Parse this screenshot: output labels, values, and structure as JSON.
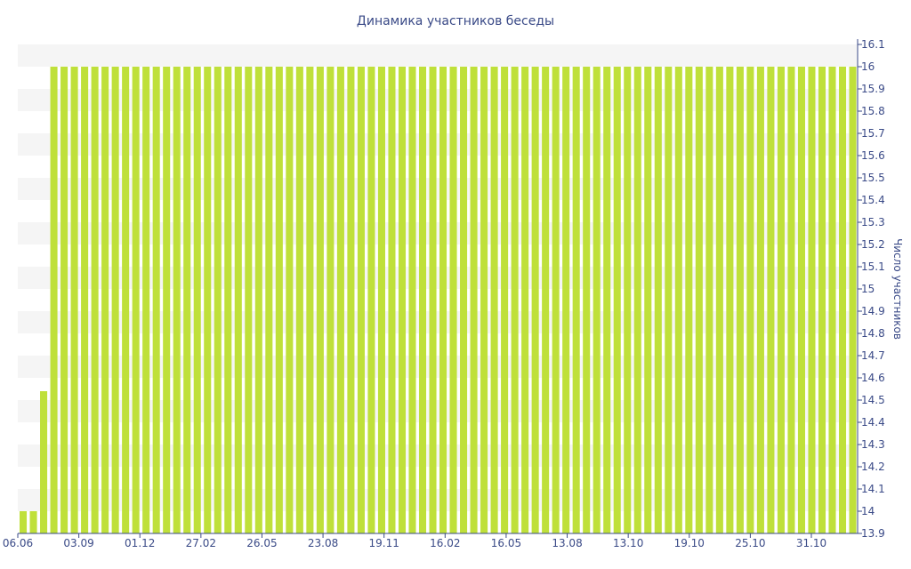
{
  "chart_data": {
    "type": "bar",
    "title": "Динамика участников беседы",
    "xlabel": "",
    "ylabel": "Число участников",
    "ylim": [
      13.9,
      16.1
    ],
    "y_ticks": [
      13.9,
      14,
      14.1,
      14.2,
      14.3,
      14.4,
      14.5,
      14.6,
      14.7,
      14.8,
      14.9,
      15,
      15.1,
      15.2,
      15.3,
      15.4,
      15.5,
      15.6,
      15.7,
      15.8,
      15.9,
      16,
      16.1
    ],
    "x_tick_labels": [
      "06.06",
      "03.09",
      "01.12",
      "27.02",
      "26.05",
      "23.08",
      "19.11",
      "16.02",
      "16.05",
      "13.08",
      "13.10",
      "19.10",
      "25.10",
      "31.10"
    ],
    "y_axis_position": "right",
    "grid": true,
    "legend": "none",
    "values": [
      14,
      14,
      14.54,
      16,
      16,
      16,
      16,
      16,
      16,
      16,
      16,
      16,
      16,
      16,
      16,
      16,
      16,
      16,
      16,
      16,
      16,
      16,
      16,
      16,
      16,
      16,
      16,
      16,
      16,
      16,
      16,
      16,
      16,
      16,
      16,
      16,
      16,
      16,
      16,
      16,
      16,
      16,
      16,
      16,
      16,
      16,
      16,
      16,
      16,
      16,
      16,
      16,
      16,
      16,
      16,
      16,
      16,
      16,
      16,
      16,
      16,
      16,
      16,
      16,
      16,
      16,
      16,
      16,
      16,
      16,
      16,
      16,
      16,
      16,
      16,
      16,
      16,
      16,
      16,
      16,
      16,
      16
    ],
    "colors": {
      "bar": "#bfe03a",
      "band": "#f5f5f5",
      "axis": "#3a4a87",
      "text": "#3a4a87"
    }
  }
}
